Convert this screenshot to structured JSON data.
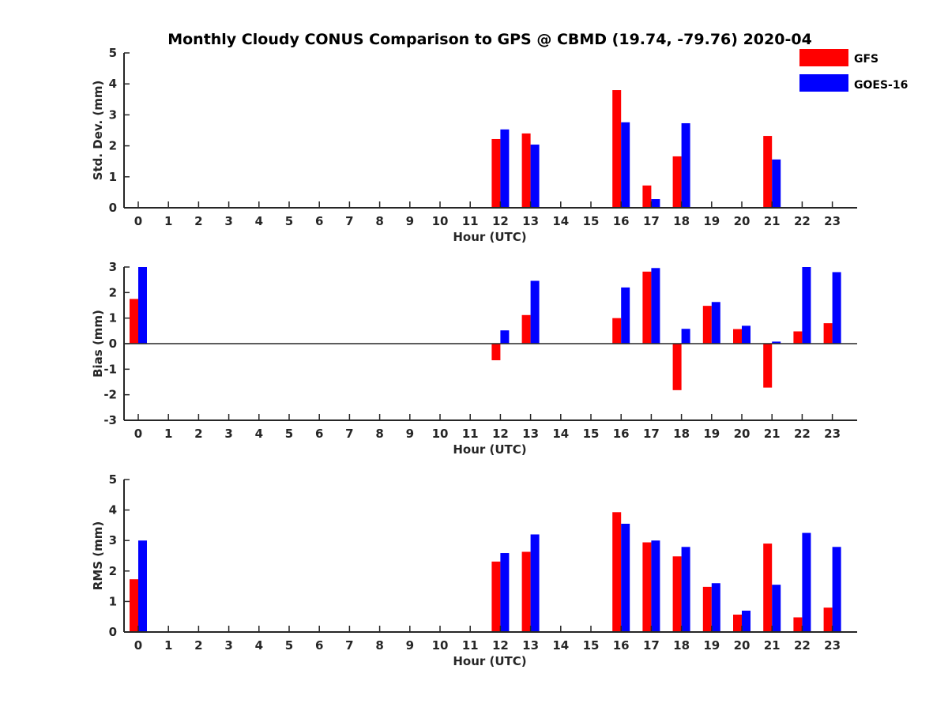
{
  "title": "Monthly Cloudy CONUS Comparison to GPS @ CBMD (19.74, -79.76) 2020-04",
  "legend": [
    {
      "name": "GFS",
      "color": "#ff0000"
    },
    {
      "name": "GOES-16",
      "color": "#0000ff"
    }
  ],
  "chart_data": [
    {
      "type": "bar",
      "xlabel": "Hour (UTC)",
      "ylabel": "Std. Dev. (mm)",
      "ylim": [
        0,
        5
      ],
      "yticks": [
        0,
        1,
        2,
        3,
        4,
        5
      ],
      "categories": [
        "0",
        "1",
        "2",
        "3",
        "4",
        "5",
        "6",
        "7",
        "8",
        "9",
        "10",
        "11",
        "12",
        "13",
        "14",
        "15",
        "16",
        "17",
        "18",
        "19",
        "20",
        "21",
        "22",
        "23"
      ],
      "series": [
        {
          "name": "GFS",
          "color": "#ff0000",
          "values": [
            0,
            0,
            0,
            0,
            0,
            0,
            0,
            0,
            0,
            0,
            0,
            0,
            2.22,
            2.4,
            0,
            0,
            3.8,
            0.72,
            1.66,
            0,
            0,
            2.32,
            0,
            0
          ]
        },
        {
          "name": "GOES-16",
          "color": "#0000ff",
          "values": [
            0,
            0,
            0,
            0,
            0,
            0,
            0,
            0,
            0,
            0,
            0,
            0,
            2.53,
            2.04,
            0,
            0,
            2.76,
            0.28,
            2.73,
            0,
            0,
            1.56,
            0,
            0
          ]
        }
      ]
    },
    {
      "type": "bar",
      "xlabel": "Hour (UTC)",
      "ylabel": "Bias (mm)",
      "ylim": [
        -3,
        3
      ],
      "yticks": [
        -3,
        -2,
        -1,
        0,
        1,
        2,
        3
      ],
      "categories": [
        "0",
        "1",
        "2",
        "3",
        "4",
        "5",
        "6",
        "7",
        "8",
        "9",
        "10",
        "11",
        "12",
        "13",
        "14",
        "15",
        "16",
        "17",
        "18",
        "19",
        "20",
        "21",
        "22",
        "23"
      ],
      "series": [
        {
          "name": "GFS",
          "color": "#ff0000",
          "values": [
            1.75,
            0,
            0,
            0,
            0,
            0,
            0,
            0,
            0,
            0,
            0,
            0,
            -0.65,
            1.12,
            0,
            0,
            1.0,
            2.82,
            -1.82,
            1.48,
            0.57,
            -1.72,
            0.48,
            0.8
          ]
        },
        {
          "name": "GOES-16",
          "color": "#0000ff",
          "values": [
            3.0,
            0,
            0,
            0,
            0,
            0,
            0,
            0,
            0,
            0,
            0,
            0,
            0.52,
            2.46,
            0,
            0,
            2.2,
            2.96,
            0.58,
            1.63,
            0.7,
            0.08,
            3.0,
            2.8
          ]
        }
      ]
    },
    {
      "type": "bar",
      "xlabel": "Hour (UTC)",
      "ylabel": "RMS (mm)",
      "ylim": [
        0,
        5
      ],
      "yticks": [
        0,
        1,
        2,
        3,
        4,
        5
      ],
      "categories": [
        "0",
        "1",
        "2",
        "3",
        "4",
        "5",
        "6",
        "7",
        "8",
        "9",
        "10",
        "11",
        "12",
        "13",
        "14",
        "15",
        "16",
        "17",
        "18",
        "19",
        "20",
        "21",
        "22",
        "23"
      ],
      "series": [
        {
          "name": "GFS",
          "color": "#ff0000",
          "values": [
            1.73,
            0,
            0,
            0,
            0,
            0,
            0,
            0,
            0,
            0,
            0,
            0,
            2.31,
            2.63,
            0,
            0,
            3.93,
            2.94,
            2.48,
            1.48,
            0.57,
            2.9,
            0.48,
            0.8
          ]
        },
        {
          "name": "GOES-16",
          "color": "#0000ff",
          "values": [
            3.0,
            0,
            0,
            0,
            0,
            0,
            0,
            0,
            0,
            0,
            0,
            0,
            2.59,
            3.2,
            0,
            0,
            3.55,
            3.0,
            2.79,
            1.6,
            0.7,
            1.55,
            3.25,
            2.79
          ]
        }
      ]
    }
  ]
}
